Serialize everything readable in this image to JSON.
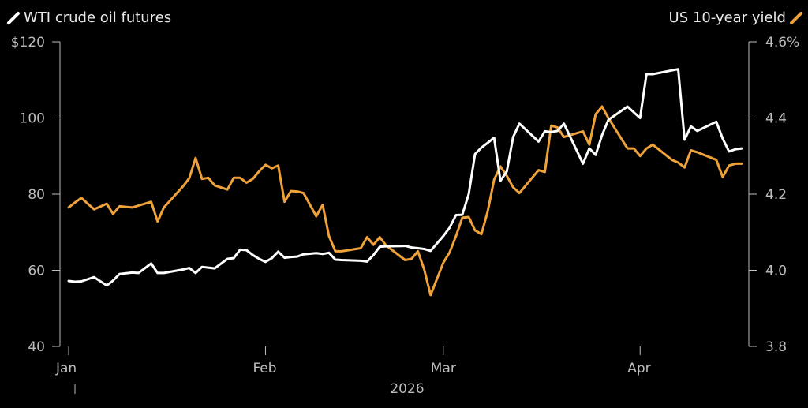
{
  "chart_data": {
    "type": "line",
    "title": "",
    "xlabel": "2026",
    "x_ticks": [
      "Jan",
      "Feb",
      "Mar",
      "Apr"
    ],
    "x_tick_days": [
      1,
      32,
      60,
      91
    ],
    "x_range": [
      1,
      107
    ],
    "y_left": {
      "label": "$",
      "ticks": [
        "$120",
        "100",
        "80",
        "60",
        "40"
      ],
      "range": [
        40,
        120
      ]
    },
    "y_right": {
      "label": "%",
      "ticks": [
        "4.6%",
        "4.4",
        "4.2",
        "4.0",
        "3.8"
      ],
      "range": [
        3.8,
        4.6
      ]
    },
    "grid": false,
    "legend_placement": "top",
    "series": [
      {
        "name": "WTI crude oil futures",
        "axis": "left",
        "color": "#ffffff",
        "x": [
          1,
          2,
          3,
          5,
          7,
          8,
          9,
          11,
          12,
          14,
          15,
          16,
          19,
          20,
          21,
          22,
          23,
          24,
          26,
          27,
          28,
          29,
          30,
          31,
          32,
          33,
          34,
          35,
          36,
          37,
          38,
          40,
          41,
          42,
          43,
          44,
          47,
          48,
          49,
          50,
          51,
          54,
          55,
          56,
          57,
          58,
          60,
          61,
          62,
          63,
          64,
          65,
          66,
          67,
          68,
          69,
          70,
          71,
          72,
          75,
          76,
          77,
          78,
          79,
          82,
          83,
          84,
          85,
          86,
          89,
          90,
          91,
          92,
          93,
          96,
          97,
          98,
          99,
          100,
          103,
          104,
          105,
          106,
          107
        ],
        "y": [
          57.2,
          57.0,
          57.1,
          58.2,
          56.0,
          57.3,
          59.0,
          59.4,
          59.3,
          61.8,
          59.3,
          59.3,
          60.2,
          60.6,
          59.3,
          60.9,
          60.7,
          60.5,
          63.0,
          63.2,
          65.4,
          65.3,
          64.0,
          63.0,
          62.2,
          63.2,
          64.9,
          63.3,
          63.5,
          63.6,
          64.2,
          64.5,
          64.3,
          64.6,
          62.8,
          62.7,
          62.5,
          62.3,
          64.0,
          66.2,
          66.3,
          66.4,
          66.0,
          65.8,
          65.6,
          65.1,
          69.0,
          71.2,
          74.5,
          74.6,
          80.0,
          90.5,
          92.2,
          93.5,
          94.8,
          83.5,
          86.0,
          95.0,
          98.5,
          93.8,
          96.5,
          96.3,
          96.6,
          98.5,
          88.0,
          92.0,
          90.3,
          95.5,
          99.5,
          103.0,
          101.5,
          100.0,
          111.5,
          111.5,
          112.5,
          112.8,
          94.3,
          97.8,
          96.6,
          99.0,
          94.6,
          91.2,
          91.8,
          92.0
        ]
      },
      {
        "name": "US 10-year yield",
        "axis": "right",
        "color": "#f0a23a",
        "x": [
          1,
          2,
          3,
          5,
          7,
          8,
          9,
          11,
          12,
          14,
          15,
          16,
          19,
          20,
          21,
          22,
          23,
          24,
          26,
          27,
          28,
          29,
          30,
          31,
          32,
          33,
          34,
          35,
          36,
          37,
          38,
          40,
          41,
          42,
          43,
          44,
          47,
          48,
          49,
          50,
          51,
          54,
          55,
          56,
          57,
          58,
          60,
          61,
          62,
          63,
          64,
          65,
          66,
          67,
          68,
          69,
          70,
          71,
          72,
          75,
          76,
          77,
          78,
          79,
          82,
          83,
          84,
          85,
          86,
          89,
          90,
          91,
          92,
          93,
          96,
          97,
          98,
          99,
          100,
          103,
          104,
          105,
          106,
          107
        ],
        "y": [
          4.165,
          4.178,
          4.19,
          4.16,
          4.175,
          4.148,
          4.168,
          4.165,
          4.17,
          4.18,
          4.128,
          4.165,
          4.22,
          4.242,
          4.295,
          4.24,
          4.243,
          4.223,
          4.212,
          4.243,
          4.243,
          4.23,
          4.24,
          4.26,
          4.277,
          4.268,
          4.275,
          4.18,
          4.208,
          4.207,
          4.203,
          4.142,
          4.172,
          4.09,
          4.05,
          4.05,
          4.058,
          4.087,
          4.067,
          4.087,
          4.065,
          4.027,
          4.03,
          4.05,
          4.002,
          3.935,
          4.02,
          4.047,
          4.09,
          4.138,
          4.14,
          4.105,
          4.095,
          4.155,
          4.238,
          4.273,
          4.248,
          4.218,
          4.203,
          4.263,
          4.258,
          4.38,
          4.375,
          4.35,
          4.365,
          4.33,
          4.41,
          4.43,
          4.4,
          4.32,
          4.32,
          4.3,
          4.32,
          4.33,
          4.29,
          4.283,
          4.27,
          4.315,
          4.31,
          4.29,
          4.245,
          4.275,
          4.28,
          4.28
        ]
      }
    ]
  }
}
